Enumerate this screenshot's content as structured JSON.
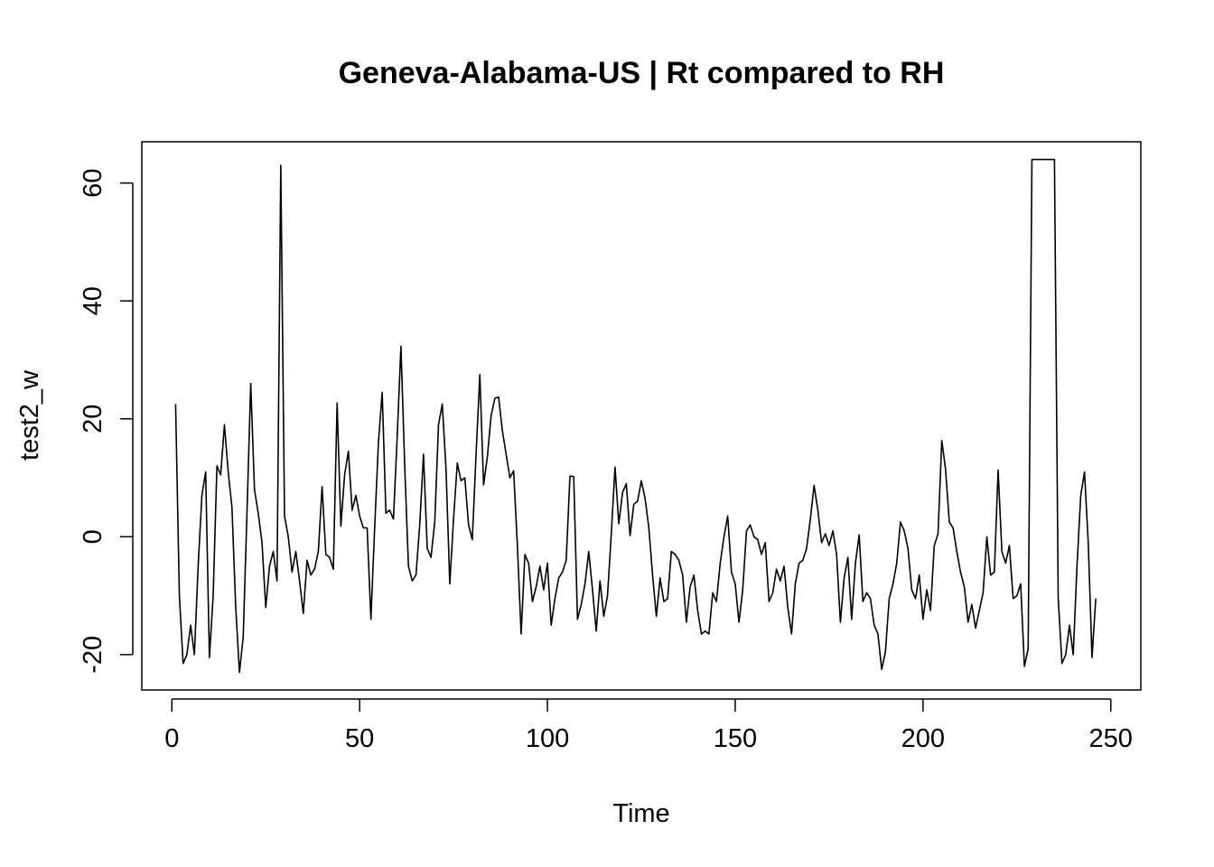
{
  "chart_data": {
    "type": "line",
    "title": "Geneva-Alabama-US | Rt compared to RH",
    "xlabel": "Time",
    "ylabel": "test2_w",
    "xlim": [
      -8,
      258
    ],
    "ylim": [
      -26,
      67
    ],
    "x_ticks": [
      0,
      50,
      100,
      150,
      200,
      250
    ],
    "y_ticks": [
      -20,
      0,
      20,
      40,
      60
    ],
    "x_tick_labels": [
      "0",
      "50",
      "100",
      "150",
      "200",
      "250"
    ],
    "y_tick_labels": [
      "-20",
      "0",
      "20",
      "40",
      "60"
    ],
    "grid": false,
    "series": [
      {
        "color": "#000000",
        "x_start": 1,
        "values": [
          22.5,
          -10,
          -21.5,
          -20,
          -15,
          -20,
          -5,
          7,
          11,
          -20.5,
          -10,
          12,
          10.5,
          19,
          11,
          5,
          -12,
          -23,
          -17,
          4,
          26,
          8,
          4,
          -1,
          -12,
          -5,
          -2.5,
          -7.5,
          63,
          3.5,
          0,
          -6,
          -2.5,
          -7.5,
          -13,
          -4,
          -6.5,
          -5.5,
          -2.5,
          8.5,
          -3,
          -3.5,
          -5.5,
          22.7,
          1.8,
          10.5,
          14.5,
          4.5,
          7,
          3.5,
          1.5,
          1.5,
          -14,
          1.5,
          16,
          24.5,
          4,
          4.5,
          3,
          17,
          32.3,
          12,
          -5,
          -7.5,
          -6.5,
          2,
          14,
          -2,
          -3.5,
          2.5,
          19,
          22.5,
          11.5,
          -8,
          3,
          12.5,
          9.5,
          10,
          2,
          -0.5,
          14,
          27.5,
          8.8,
          13.5,
          20.5,
          23.5,
          23.7,
          18,
          14,
          10,
          11.2,
          -1.5,
          -16.5,
          -3,
          -4.5,
          -11,
          -8.5,
          -5,
          -9,
          -4.5,
          -15,
          -10.5,
          -7,
          -6,
          -4,
          10.3,
          10.2,
          -14,
          -11.5,
          -8,
          -2.5,
          -9,
          -16,
          -7.5,
          -13.5,
          -10,
          0.5,
          11.8,
          2.2,
          7.5,
          9,
          0.2,
          5.5,
          6,
          9.5,
          6.5,
          1.5,
          -6.5,
          -13.5,
          -7,
          -11,
          -10.5,
          -2.5,
          -3,
          -4,
          -6.5,
          -14.5,
          -8.5,
          -6.5,
          -12.5,
          -16.5,
          -16,
          -16.5,
          -9.5,
          -11,
          -4.5,
          0,
          3.5,
          -6,
          -8,
          -14.5,
          -9,
          1,
          2,
          0,
          -0.5,
          -3,
          -1,
          -11,
          -9.5,
          -5.5,
          -7.5,
          -5,
          -12,
          -16.5,
          -8,
          -4.5,
          -4,
          -2,
          3,
          8.7,
          4.5,
          -1,
          0.5,
          -1.5,
          1,
          -3,
          -14.5,
          -7,
          -3.5,
          -14,
          -4.5,
          0.3,
          -11,
          -9.5,
          -10.5,
          -15,
          -16.5,
          -22.5,
          -19.5,
          -10.5,
          -8,
          -4.5,
          2.5,
          1,
          -2,
          -9,
          -10.5,
          -6.5,
          -14,
          -9,
          -12.5,
          -1.5,
          0.5,
          16.3,
          11.5,
          2.5,
          1.5,
          -2.5,
          -6,
          -8.5,
          -14.5,
          -11.5,
          -15.5,
          -12.5,
          -9.5,
          0,
          -6.5,
          -6,
          11.3,
          -2.5,
          -4.5,
          -1.5,
          -10.5,
          -10,
          -8,
          -22,
          -19,
          64,
          64,
          64,
          64,
          64,
          64,
          64,
          -10.5,
          -21.5,
          -20,
          -15,
          -20,
          -5,
          7,
          11,
          -1,
          -20.5,
          -10.5
        ]
      }
    ]
  }
}
